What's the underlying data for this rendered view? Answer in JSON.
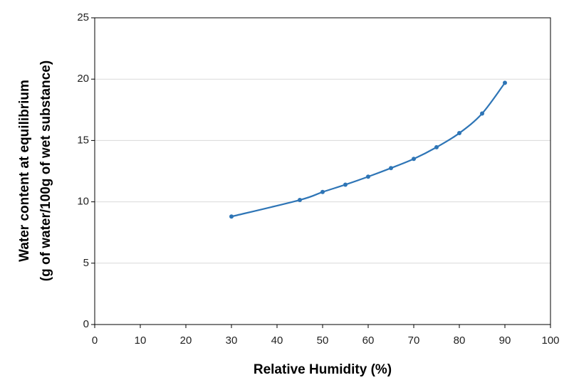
{
  "chart_data": {
    "type": "line",
    "xlabel": "Relative Humidity (%)",
    "ylabel": [
      "Water content at equilibrium",
      "(g of water/100g of wet substance)"
    ],
    "x": [
      30,
      45,
      50,
      55,
      60,
      65,
      70,
      75,
      80,
      85,
      90
    ],
    "series": [
      {
        "color": "#2e75b6",
        "values": [
          8.8,
          10.15,
          10.8,
          11.4,
          12.05,
          12.75,
          13.5,
          14.45,
          15.6,
          17.2,
          19.7
        ]
      }
    ],
    "xlim": [
      0,
      100
    ],
    "xticks": [
      0,
      10,
      20,
      30,
      40,
      50,
      60,
      70,
      80,
      90,
      100
    ],
    "ylim": [
      0,
      25
    ],
    "yticks": [
      0,
      5,
      10,
      15,
      20,
      25
    ],
    "grid": true,
    "smooth": true
  }
}
